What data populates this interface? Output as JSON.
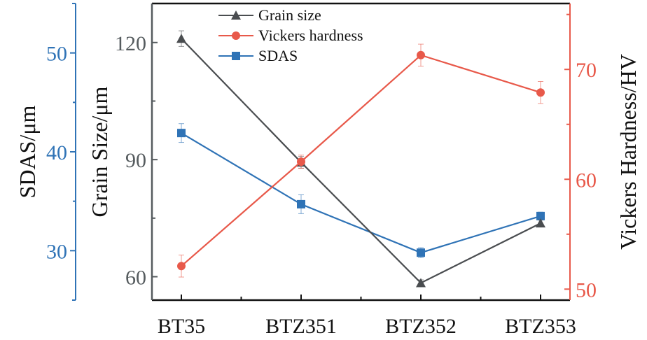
{
  "chart_data": {
    "type": "line",
    "title": "",
    "categories": [
      "BT35",
      "BTZ351",
      "BTZ352",
      "BTZ353"
    ],
    "xlabel": "",
    "axes": {
      "grain": {
        "label": "Grain Size/μm",
        "side": "left-inner",
        "range": [
          54,
          130
        ],
        "ticks": [
          60,
          90,
          120
        ],
        "minor_ticks": [
          75,
          105
        ],
        "color": "#555b5e"
      },
      "sdas": {
        "label": "SDAS/μm",
        "side": "left-outer",
        "range": [
          25,
          55
        ],
        "ticks": [
          30,
          40,
          50
        ],
        "minor_ticks": [
          35,
          45
        ],
        "color": "#2f73b6"
      },
      "hv": {
        "label": "Vickers Hardness/HV",
        "side": "right",
        "range": [
          49,
          76
        ],
        "ticks": [
          50,
          60,
          70
        ],
        "minor_ticks": [
          55,
          65,
          75
        ],
        "color": "#e8594a"
      }
    },
    "series": [
      {
        "name": "Grain size",
        "axis": "grain",
        "marker": "triangle",
        "color": "#4a4d50",
        "values": [
          121,
          89.3,
          58.4,
          73.7
        ],
        "errors": [
          2,
          1.5,
          0.8,
          0.8
        ]
      },
      {
        "name": "Vickers hardness",
        "axis": "hv",
        "marker": "circle",
        "color": "#e8594a",
        "values": [
          52.1,
          61.6,
          71.3,
          67.9
        ],
        "errors": [
          1.0,
          0.6,
          1.0,
          1.0
        ]
      },
      {
        "name": "SDAS",
        "axis": "sdas",
        "marker": "square",
        "color": "#2f73b6",
        "values": [
          41.9,
          34.7,
          29.8,
          33.5
        ],
        "errors": [
          0.95,
          0.95,
          0.5,
          0.4
        ]
      }
    ],
    "legend": {
      "position": "top-center",
      "entries": [
        "Grain size",
        "Vickers hardness",
        "SDAS"
      ]
    },
    "grid": false
  }
}
